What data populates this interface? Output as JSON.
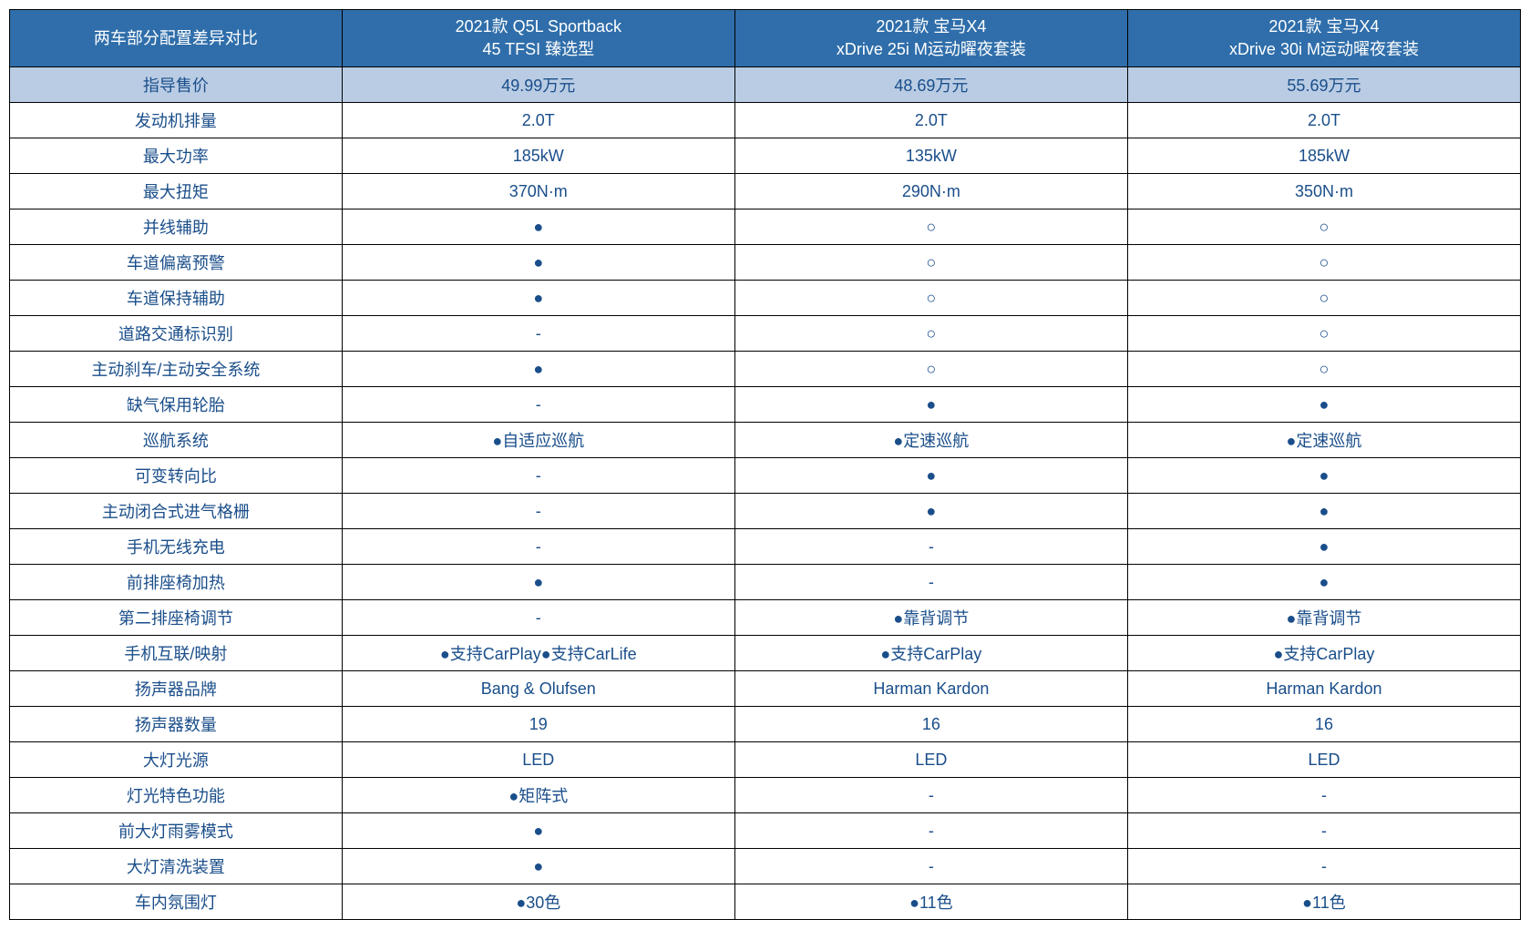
{
  "colors": {
    "header_bg": "#2f6eaa",
    "header_text": "#ffffff",
    "price_row_bg": "#b9cce4",
    "price_row_text": "#1a4e8a",
    "body_text": "#1a4e8a",
    "border": "#000000"
  },
  "header": {
    "label": "两车部分配置差异对比",
    "cars": [
      {
        "line1": "2021款 Q5L Sportback",
        "line2": "45 TFSI 臻选型"
      },
      {
        "line1": "2021款 宝马X4",
        "line2": "xDrive 25i M运动曜夜套装"
      },
      {
        "line1": "2021款 宝马X4",
        "line2": "xDrive 30i M运动曜夜套装"
      }
    ]
  },
  "price_row": {
    "label": "指导售价",
    "values": [
      "49.99万元",
      "48.69万元",
      "55.69万元"
    ]
  },
  "rows": [
    {
      "label": "发动机排量",
      "values": [
        "2.0T",
        "2.0T",
        "2.0T"
      ]
    },
    {
      "label": "最大功率",
      "values": [
        "185kW",
        "135kW",
        "185kW"
      ]
    },
    {
      "label": "最大扭矩",
      "values": [
        "370N·m",
        "290N·m",
        "350N·m"
      ]
    },
    {
      "label": "并线辅助",
      "values": [
        "●",
        "○",
        "○"
      ]
    },
    {
      "label": "车道偏离预警",
      "values": [
        "●",
        "○",
        "○"
      ]
    },
    {
      "label": "车道保持辅助",
      "values": [
        "●",
        "○",
        "○"
      ]
    },
    {
      "label": "道路交通标识别",
      "values": [
        "-",
        "○",
        "○"
      ]
    },
    {
      "label": "主动刹车/主动安全系统",
      "values": [
        "●",
        "○",
        "○"
      ]
    },
    {
      "label": "缺气保用轮胎",
      "values": [
        "-",
        "●",
        "●"
      ]
    },
    {
      "label": "巡航系统",
      "values": [
        "●自适应巡航",
        "●定速巡航",
        "●定速巡航"
      ]
    },
    {
      "label": "可变转向比",
      "values": [
        "-",
        "●",
        "●"
      ]
    },
    {
      "label": "主动闭合式进气格栅",
      "values": [
        "-",
        "●",
        "●"
      ]
    },
    {
      "label": "手机无线充电",
      "values": [
        "-",
        "-",
        "●"
      ]
    },
    {
      "label": "前排座椅加热",
      "values": [
        "●",
        "-",
        "●"
      ]
    },
    {
      "label": "第二排座椅调节",
      "values": [
        "-",
        "●靠背调节",
        "●靠背调节"
      ]
    },
    {
      "label": "手机互联/映射",
      "values": [
        "●支持CarPlay●支持CarLife",
        "●支持CarPlay",
        "●支持CarPlay"
      ]
    },
    {
      "label": "扬声器品牌",
      "values": [
        "Bang & Olufsen",
        "Harman Kardon",
        "Harman Kardon"
      ]
    },
    {
      "label": "扬声器数量",
      "values": [
        "19",
        "16",
        "16"
      ]
    },
    {
      "label": "大灯光源",
      "values": [
        "LED",
        "LED",
        "LED"
      ]
    },
    {
      "label": "灯光特色功能",
      "values": [
        "●矩阵式",
        "-",
        "-"
      ]
    },
    {
      "label": "前大灯雨雾模式",
      "values": [
        "●",
        "-",
        "-"
      ]
    },
    {
      "label": "大灯清洗装置",
      "values": [
        "●",
        "-",
        "-"
      ]
    },
    {
      "label": "车内氛围灯",
      "values": [
        "●30色",
        "●11色",
        "●11色"
      ]
    }
  ]
}
